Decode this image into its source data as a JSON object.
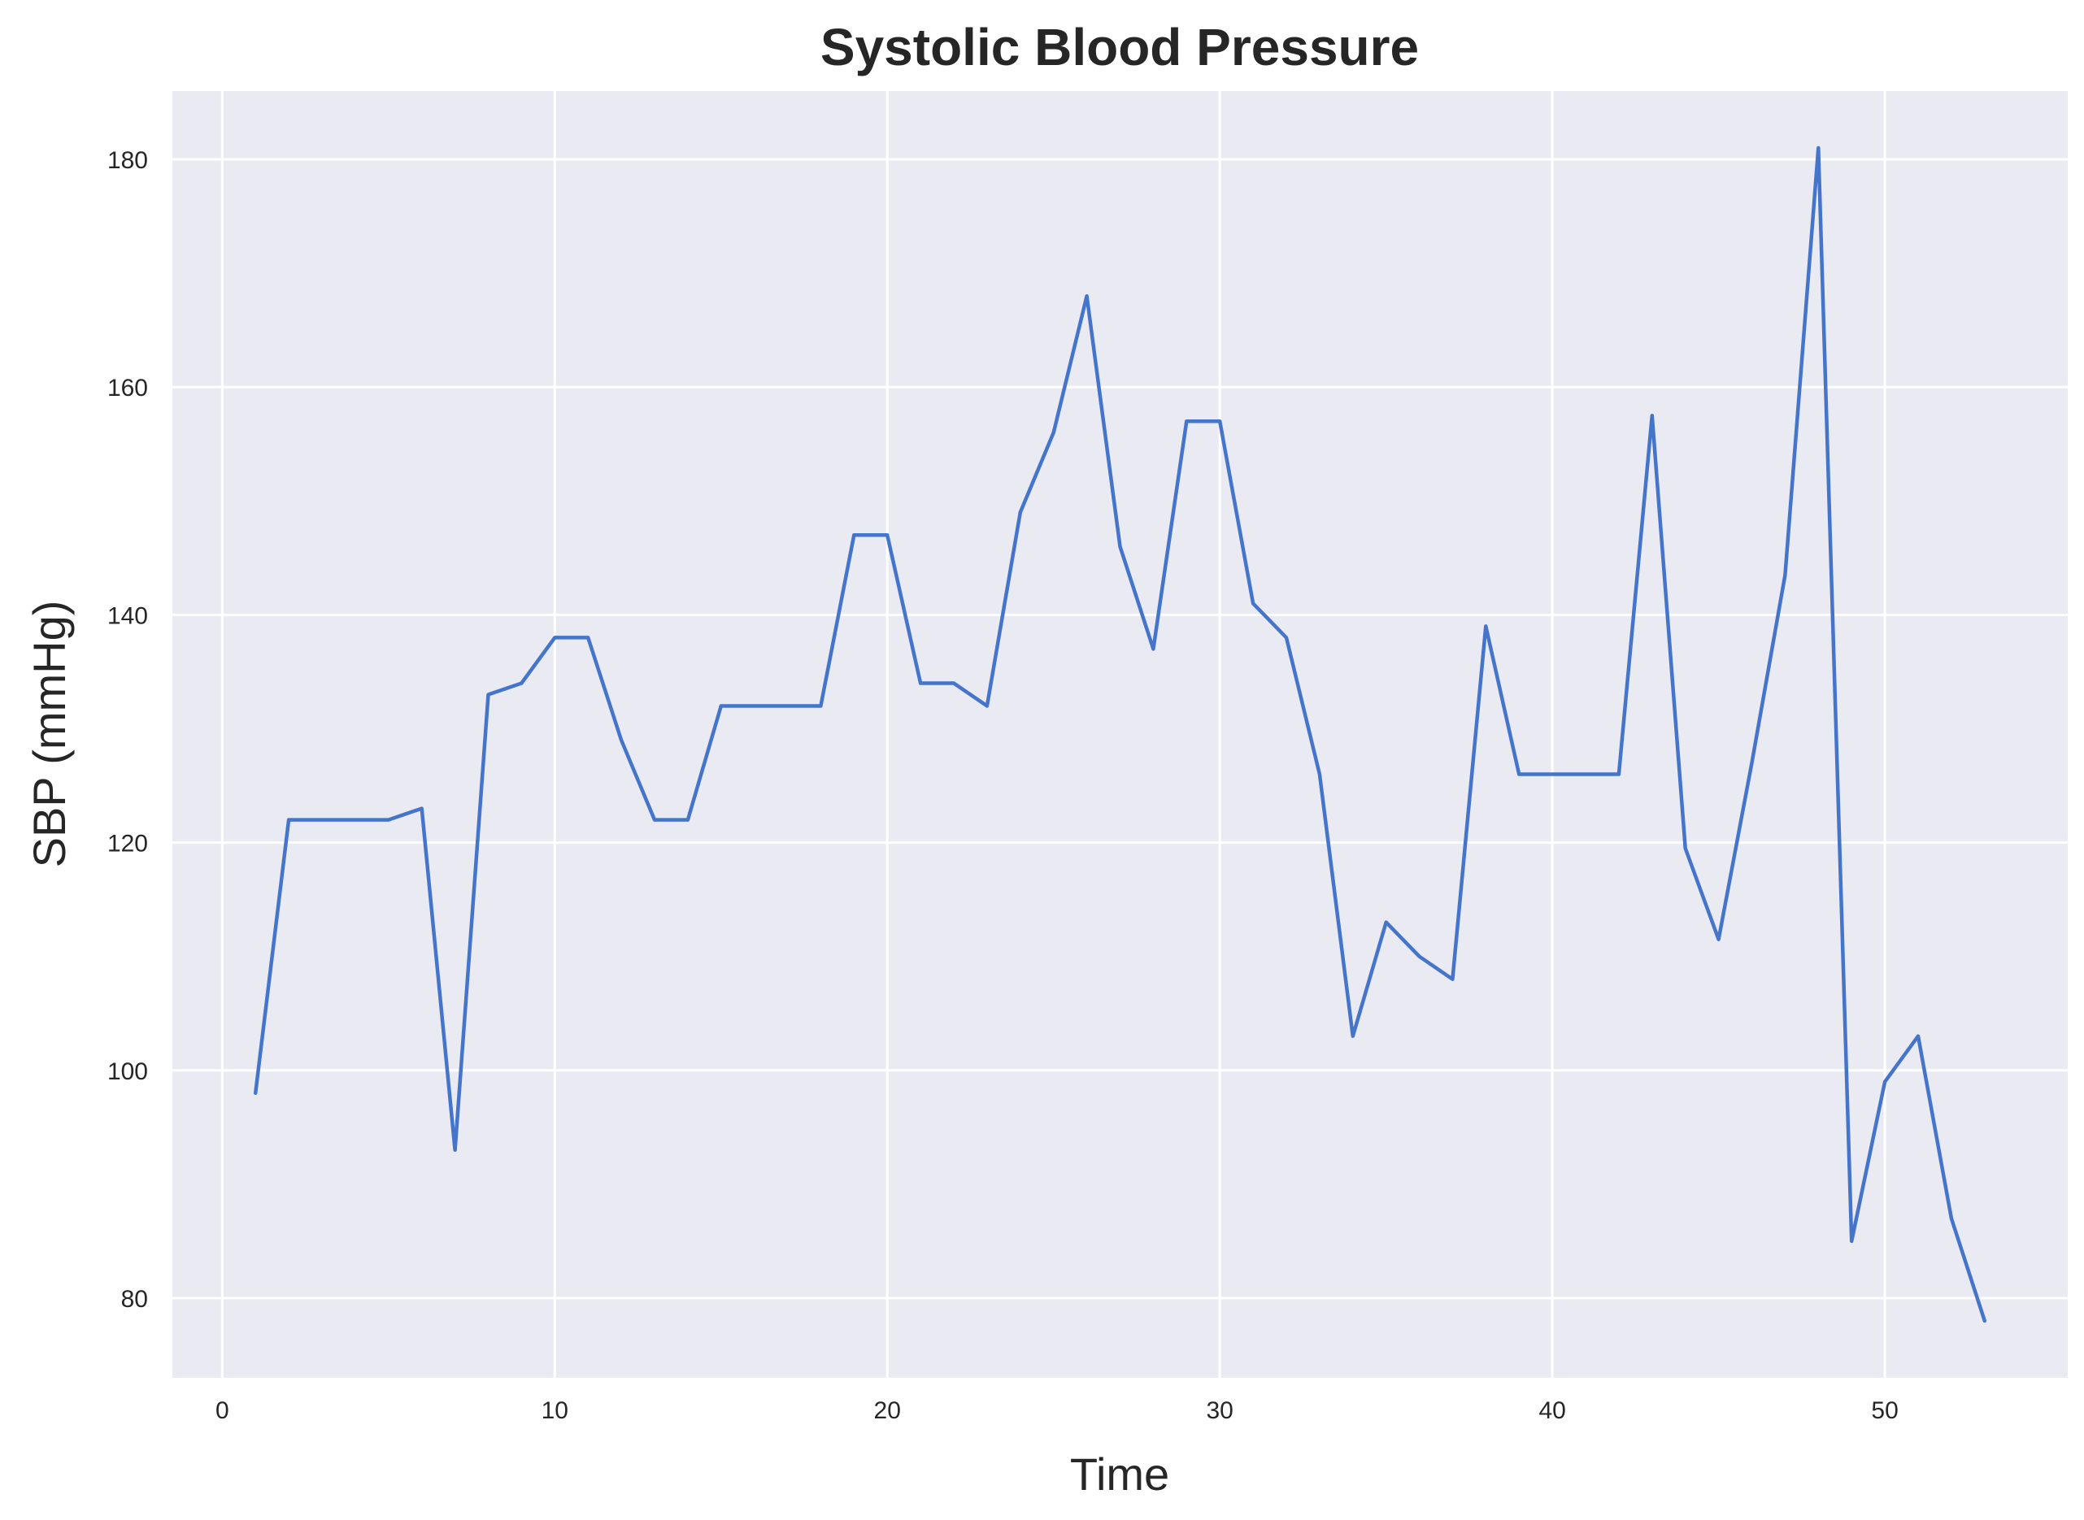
{
  "chart_data": {
    "type": "line",
    "title": "Systolic Blood Pressure",
    "xlabel": "Time",
    "ylabel": "SBP (mmHg)",
    "xlim": [
      -1.5,
      55.5
    ],
    "ylim": [
      73,
      186
    ],
    "x_ticks": [
      0,
      10,
      20,
      30,
      40,
      50
    ],
    "y_ticks": [
      80,
      100,
      120,
      140,
      160,
      180
    ],
    "grid": true,
    "legend": "none",
    "colors": {
      "line": "#4575cb",
      "plot_bg": "#eaeaf2",
      "grid": "#ffffff"
    },
    "series": [
      {
        "x": [
          1,
          2,
          3,
          4,
          5,
          6,
          7,
          8,
          9,
          10,
          11,
          12,
          13,
          14,
          15,
          16,
          17,
          18,
          19,
          20,
          21,
          22,
          23,
          24,
          25,
          26,
          27,
          28,
          29,
          30,
          31,
          32,
          33,
          34,
          35,
          36,
          37,
          38,
          39,
          40,
          41,
          42,
          43,
          44,
          45,
          46,
          47,
          48,
          49,
          50,
          51,
          52,
          53
        ],
        "values": [
          98,
          122,
          122,
          122,
          122,
          123,
          93,
          133,
          134,
          138,
          138,
          129,
          122,
          122,
          132,
          132,
          132,
          132,
          147,
          147,
          134,
          134,
          132,
          149,
          156,
          168,
          146,
          137,
          157,
          157,
          141,
          138,
          126,
          103,
          113,
          110,
          108,
          139,
          126,
          126,
          126,
          126,
          157.5,
          119.5,
          111.5,
          127,
          143.5,
          181,
          85,
          99,
          103,
          87,
          78
        ]
      }
    ]
  }
}
